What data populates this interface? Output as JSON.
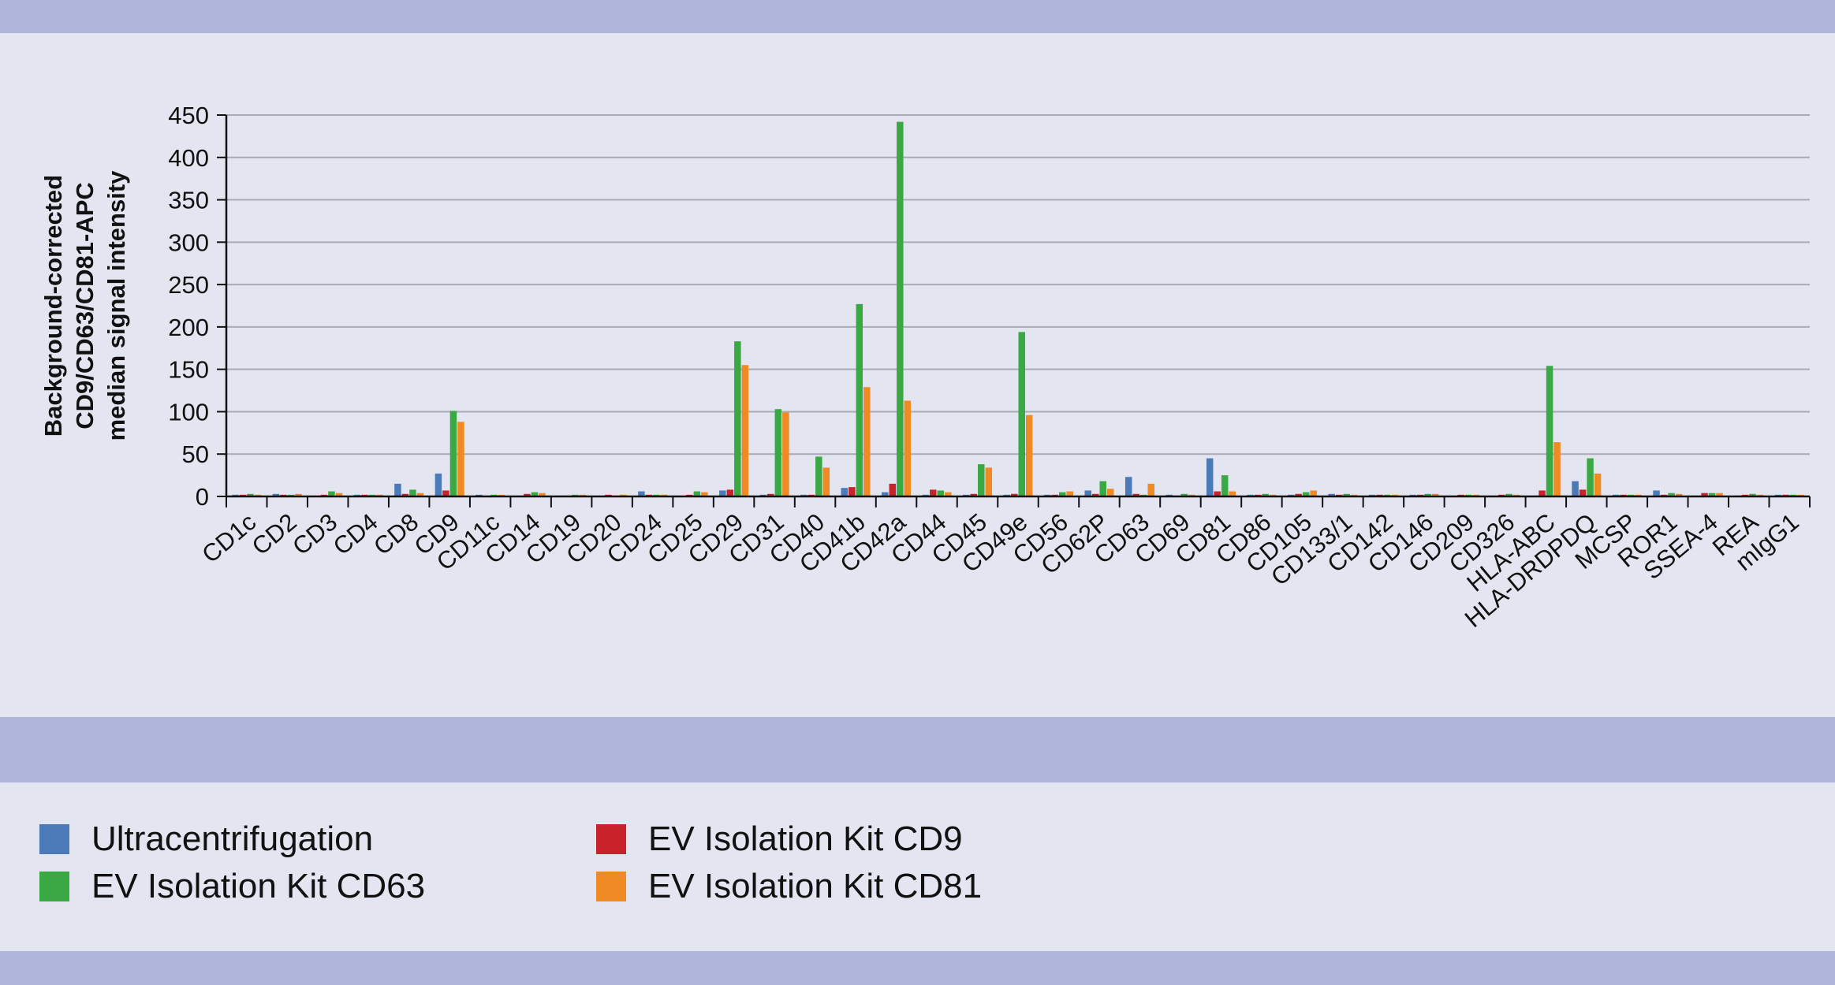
{
  "chart_data": {
    "type": "bar",
    "title": "",
    "xlabel": "",
    "ylabel_lines": [
      "Background-corrected",
      "CD9/CD63/CD81-APC",
      "median signal intensity"
    ],
    "ylim": [
      0,
      450
    ],
    "yticks": [
      0,
      50,
      100,
      150,
      200,
      250,
      300,
      350,
      400,
      450
    ],
    "grid": true,
    "legend_position": "bottom",
    "categories": [
      "CD1c",
      "CD2",
      "CD3",
      "CD4",
      "CD8",
      "CD9",
      "CD11c",
      "CD14",
      "CD19",
      "CD20",
      "CD24",
      "CD25",
      "CD29",
      "CD31",
      "CD40",
      "CD41b",
      "CD42a",
      "CD44",
      "CD45",
      "CD49e",
      "CD56",
      "CD62P",
      "CD63",
      "CD69",
      "CD81",
      "CD86",
      "CD105",
      "CD133/1",
      "CD142",
      "CD146",
      "CD209",
      "CD326",
      "HLA-ABC",
      "HLA-DRDPDQ",
      "MCSP",
      "ROR1",
      "SSEA-4",
      "REA",
      "mIgG1"
    ],
    "series": [
      {
        "name": "Ultracentrifugation",
        "color": "#4a7ab8",
        "values": [
          2,
          3,
          1,
          2,
          15,
          27,
          2,
          1,
          1,
          1,
          6,
          1,
          7,
          2,
          2,
          10,
          5,
          2,
          2,
          2,
          2,
          7,
          23,
          2,
          45,
          2,
          2,
          3,
          2,
          2,
          1,
          1,
          1,
          18,
          2,
          7,
          1,
          1,
          2
        ]
      },
      {
        "name": "EV Isolation Kit CD9",
        "color": "#c8232a",
        "values": [
          2,
          2,
          2,
          2,
          3,
          7,
          1,
          3,
          1,
          2,
          2,
          2,
          8,
          3,
          2,
          11,
          15,
          8,
          3,
          3,
          2,
          3,
          3,
          1,
          6,
          2,
          3,
          2,
          2,
          2,
          2,
          2,
          7,
          8,
          2,
          2,
          4,
          2,
          2
        ]
      },
      {
        "name": "EV Isolation Kit CD63",
        "color": "#3aa843",
        "values": [
          3,
          2,
          6,
          2,
          8,
          101,
          2,
          5,
          2,
          1,
          2,
          6,
          183,
          103,
          47,
          227,
          442,
          7,
          38,
          194,
          5,
          18,
          2,
          3,
          25,
          3,
          5,
          3,
          2,
          3,
          2,
          3,
          154,
          45,
          2,
          4,
          4,
          3,
          2
        ]
      },
      {
        "name": "EV Isolation Kit CD81",
        "color": "#ef8a25",
        "values": [
          2,
          3,
          4,
          2,
          4,
          88,
          2,
          4,
          2,
          2,
          2,
          5,
          155,
          99,
          34,
          129,
          113,
          5,
          34,
          96,
          6,
          9,
          15,
          2,
          6,
          2,
          7,
          2,
          2,
          3,
          2,
          2,
          64,
          27,
          2,
          3,
          4,
          2,
          2
        ]
      }
    ]
  },
  "legend": {
    "items": [
      {
        "label": "Ultracentrifugation",
        "color": "#4a7ab8"
      },
      {
        "label": "EV Isolation Kit CD63",
        "color": "#3aa843"
      },
      {
        "label": "EV Isolation Kit CD9",
        "color": "#c8232a"
      },
      {
        "label": "EV Isolation Kit CD81",
        "color": "#ef8a25"
      }
    ]
  }
}
